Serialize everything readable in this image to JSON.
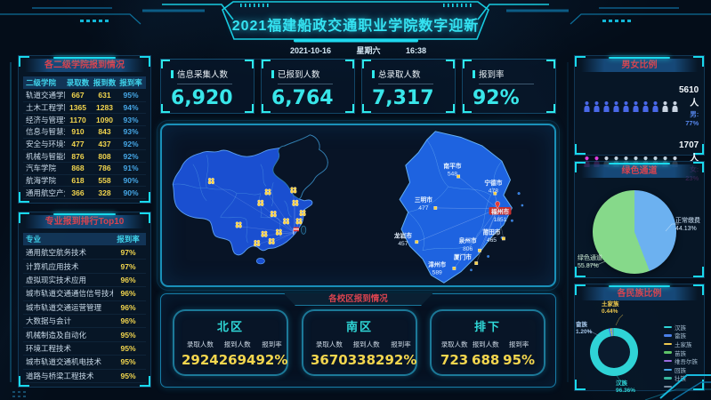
{
  "header": {
    "title": "2021福建船政交通职业学院数字迎新",
    "date": "2021-10-16",
    "weekday": "星期六",
    "time": "16:38"
  },
  "stats": [
    {
      "label": "信息采集人数",
      "value": "6,920"
    },
    {
      "label": "已报到人数",
      "value": "6,764"
    },
    {
      "label": "总录取人数",
      "value": "7,317"
    },
    {
      "label": "报到率",
      "value": "92%"
    }
  ],
  "panels": {
    "colleges": {
      "title": "各二级学院报到情况"
    },
    "majors": {
      "title": "专业报到排行Top10"
    },
    "gender": {
      "title": "男女比例",
      "male": {
        "count": "5610人",
        "label": "男: 77%",
        "icons_filled": 8,
        "icons_total": 10
      },
      "female": {
        "count": "1707人",
        "label": "女: 23%",
        "icons_filled": 2,
        "icons_total": 10
      }
    },
    "green": {
      "title": "绿色通道",
      "slices": [
        {
          "name": "正常缴费",
          "pct": "44.13%"
        },
        {
          "name": "绿色通道",
          "pct": "55.87%"
        }
      ]
    },
    "ethnic": {
      "title": "各民族比例",
      "callouts": [
        {
          "name": "土家族",
          "pct": "0.44%"
        },
        {
          "name": "畲族",
          "pct": "1.20%"
        },
        {
          "name": "汉族",
          "pct": "96.36%"
        }
      ],
      "legend": [
        "汉族",
        "畲族",
        "土家族",
        "苗族",
        "维吾尔族",
        "回族",
        "壮族",
        ""
      ]
    },
    "campus": {
      "title": "各校区报到情况",
      "labels": [
        "录取人数",
        "报到人数",
        "报到率"
      ],
      "campuses": [
        {
          "name": "北区",
          "admitted": "2924",
          "reported": "2694",
          "rate": "92%"
        },
        {
          "name": "南区",
          "admitted": "3670",
          "reported": "3382",
          "rate": "92%"
        },
        {
          "name": "排下",
          "admitted": "723",
          "reported": "688",
          "rate": "95%"
        }
      ]
    }
  },
  "fujian_map": {
    "cities": [
      {
        "name": "南平市",
        "value": "548"
      },
      {
        "name": "宁德市",
        "value": "478"
      },
      {
        "name": "三明市",
        "value": "477"
      },
      {
        "name": "福州市",
        "value": "1851"
      },
      {
        "name": "莆田市",
        "value": "465"
      },
      {
        "name": "泉州市",
        "value": "806"
      },
      {
        "name": "龙岩市",
        "value": "457"
      },
      {
        "name": "厦门市",
        "value": ""
      },
      {
        "name": "漳州市",
        "value": "589"
      }
    ]
  },
  "colors": {
    "accent_cyan": "#1ad9ec",
    "title_red": "#d8434f",
    "value_yellow": "#f3d64e",
    "value_cyan": "#39e6ea",
    "rate_blue": "#46a8e8",
    "male_blue": "#4968e8",
    "female_magenta": "#e03ee0",
    "pie_green": "#86d98a",
    "pie_blue": "#6cb1f0",
    "ring_cyan": "#2fd3d6",
    "china_fill": "#1a4fd0",
    "fujian_fill": "#1e63e0"
  },
  "chart_data": [
    {
      "type": "table",
      "title": "各二级学院报到情况",
      "columns": [
        "二级学院",
        "录取数",
        "报到数",
        "报到率"
      ],
      "rows": [
        [
          "轨道交通学院",
          667,
          631,
          "95%"
        ],
        [
          "土木工程学院",
          1365,
          1283,
          "94%"
        ],
        [
          "经济与管理学院",
          1170,
          1090,
          "93%"
        ],
        [
          "信息与智慧交通学院",
          910,
          843,
          "93%"
        ],
        [
          "安全与环境学院",
          477,
          437,
          "92%"
        ],
        [
          "机械与智能制造学院",
          876,
          808,
          "92%"
        ],
        [
          "汽车学院",
          868,
          786,
          "91%"
        ],
        [
          "航海学院",
          618,
          558,
          "90%"
        ],
        [
          "通用航空产业学院",
          366,
          328,
          "90%"
        ]
      ]
    },
    {
      "type": "table",
      "title": "专业报到排行Top10",
      "columns": [
        "专业",
        "报到率"
      ],
      "rows": [
        [
          "通用航空航务技术",
          "97%"
        ],
        [
          "计算机应用技术",
          "97%"
        ],
        [
          "虚拟现实技术应用",
          "96%"
        ],
        [
          "城市轨道交通通信信号技术",
          "96%"
        ],
        [
          "城市轨道交通运营管理",
          "96%"
        ],
        [
          "大数据与会计",
          "96%"
        ],
        [
          "机械制造及自动化",
          "95%"
        ],
        [
          "环境工程技术",
          "95%"
        ],
        [
          "城市轨道交通机电技术",
          "95%"
        ],
        [
          "道路与桥梁工程技术",
          "95%"
        ]
      ]
    },
    {
      "type": "bar",
      "title": "男女比例",
      "categories": [
        "男",
        "女"
      ],
      "values": [
        5610,
        1707
      ],
      "percents": [
        "77%",
        "23%"
      ]
    },
    {
      "type": "pie",
      "title": "绿色通道",
      "labels": [
        "正常缴费",
        "绿色通道"
      ],
      "values": [
        44.13,
        55.87
      ]
    },
    {
      "type": "pie",
      "title": "各民族比例",
      "labels": [
        "汉族",
        "畲族",
        "土家族",
        "苗族",
        "维吾尔族",
        "回族",
        "壮族"
      ],
      "values": [
        96.36,
        1.2,
        0.44,
        null,
        null,
        null,
        null
      ]
    },
    {
      "type": "map",
      "title": "",
      "labels": [
        "福州市",
        "泉州市",
        "漳州市",
        "南平市",
        "宁德市",
        "三明市",
        "莆田市",
        "龙岩市",
        "厦门市"
      ],
      "values": [
        1851,
        806,
        589,
        548,
        478,
        477,
        465,
        457,
        null
      ]
    },
    {
      "type": "table",
      "title": "各校区报到情况",
      "columns": [
        "校区",
        "录取人数",
        "报到人数",
        "报到率"
      ],
      "rows": [
        [
          "北区",
          2924,
          2694,
          "92%"
        ],
        [
          "南区",
          3670,
          3382,
          "92%"
        ],
        [
          "排下",
          723,
          688,
          "95%"
        ]
      ]
    },
    {
      "type": "table",
      "title": "总体指标",
      "columns": [
        "指标",
        "值"
      ],
      "rows": [
        [
          "信息采集人数",
          "6,920"
        ],
        [
          "已报到人数",
          "6,764"
        ],
        [
          "总录取人数",
          "7,317"
        ],
        [
          "报到率",
          "92%"
        ]
      ]
    }
  ]
}
